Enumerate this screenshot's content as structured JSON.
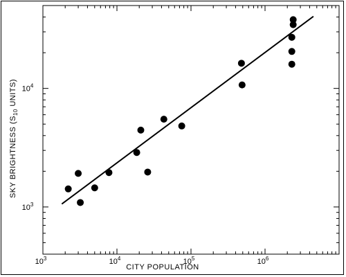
{
  "chart_data": {
    "type": "scatter",
    "xlabel": "CITY  POPULATION",
    "ylabel_main": "SKY BRIGHTNESS  (S",
    "ylabel_sub": "10",
    "ylabel_tail": " UNITS)",
    "xscale": "log",
    "yscale": "log",
    "xlim": [
      1000,
      10000000
    ],
    "ylim": [
      400,
      50000
    ],
    "grid": false,
    "x_ticks": [
      {
        "base": "10",
        "exp": "3",
        "value": 1000
      },
      {
        "base": "10",
        "exp": "4",
        "value": 10000
      },
      {
        "base": "10",
        "exp": "5",
        "value": 100000
      },
      {
        "base": "10",
        "exp": "6",
        "value": 1000000
      }
    ],
    "y_ticks": [
      {
        "base": "10",
        "exp": "3",
        "value": 1000
      },
      {
        "base": "10",
        "exp": "4",
        "value": 10000
      }
    ],
    "points": [
      {
        "x": 2200,
        "y": 1420
      },
      {
        "x": 3000,
        "y": 1920
      },
      {
        "x": 3200,
        "y": 1090
      },
      {
        "x": 5000,
        "y": 1450
      },
      {
        "x": 7800,
        "y": 1950
      },
      {
        "x": 18500,
        "y": 2880
      },
      {
        "x": 21000,
        "y": 4450
      },
      {
        "x": 26000,
        "y": 1970
      },
      {
        "x": 43000,
        "y": 5500
      },
      {
        "x": 75000,
        "y": 4820
      },
      {
        "x": 480000,
        "y": 16300
      },
      {
        "x": 490000,
        "y": 10700
      },
      {
        "x": 2300000,
        "y": 16000
      },
      {
        "x": 2300000,
        "y": 20500
      },
      {
        "x": 2300000,
        "y": 27000
      },
      {
        "x": 2400000,
        "y": 34500
      },
      {
        "x": 2400000,
        "y": 38000
      }
    ],
    "fit_line": [
      {
        "x": 1800,
        "y": 1060
      },
      {
        "x": 4500000,
        "y": 40500
      }
    ]
  }
}
